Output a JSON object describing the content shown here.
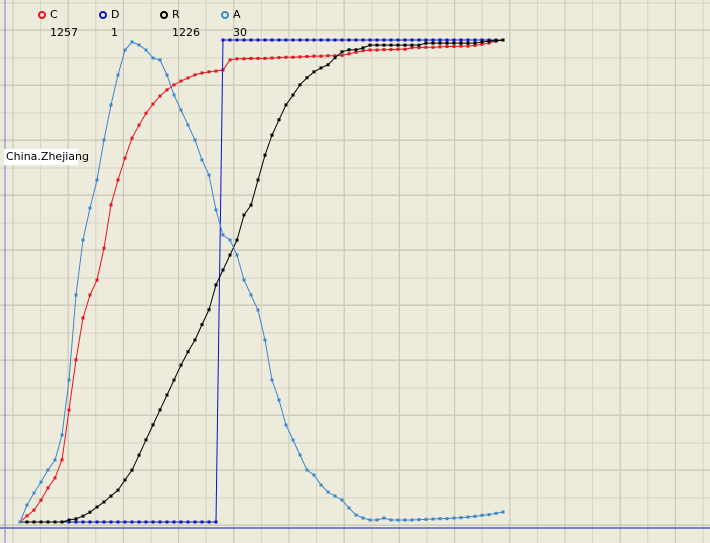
{
  "chart_data": {
    "type": "line",
    "label": "China.Zhejiang",
    "series": [
      {
        "name": "C",
        "color": "#e8141e",
        "latest": "1257",
        "ylim": [
          0,
          1257
        ],
        "values": [
          0,
          16,
          31,
          57,
          89,
          115,
          162,
          292,
          423,
          532,
          592,
          631,
          714,
          827,
          892,
          949,
          1001,
          1035,
          1066,
          1090,
          1111,
          1127,
          1140,
          1150,
          1158,
          1166,
          1171,
          1174,
          1176,
          1179,
          1205,
          1208,
          1208,
          1209,
          1209,
          1209,
          1210,
          1211,
          1212,
          1212,
          1213,
          1214,
          1215,
          1215,
          1216,
          1216,
          1217,
          1221,
          1225,
          1229,
          1231,
          1231,
          1232,
          1232,
          1233,
          1233,
          1237,
          1237,
          1238,
          1238,
          1239,
          1240,
          1240,
          1241,
          1241,
          1243,
          1246,
          1249,
          1254,
          1257
        ]
      },
      {
        "name": "D",
        "color": "#0a14c8",
        "latest": "1",
        "ylim": [
          0,
          1
        ],
        "values": [
          0,
          0,
          0,
          0,
          0,
          0,
          0,
          0,
          0,
          0,
          0,
          0,
          0,
          0,
          0,
          0,
          0,
          0,
          0,
          0,
          0,
          0,
          0,
          0,
          0,
          0,
          0,
          0,
          0,
          1,
          1,
          1,
          1,
          1,
          1,
          1,
          1,
          1,
          1,
          1,
          1,
          1,
          1,
          1,
          1,
          1,
          1,
          1,
          1,
          1,
          1,
          1,
          1,
          1,
          1,
          1,
          1,
          1,
          1,
          1,
          1,
          1,
          1,
          1,
          1,
          1,
          1,
          1,
          1,
          1
        ]
      },
      {
        "name": "R",
        "color": "#000000",
        "latest": "1226",
        "ylim": [
          0,
          1226
        ],
        "values": [
          0,
          0,
          0,
          0,
          0,
          0,
          0,
          5,
          8,
          15,
          25,
          38,
          51,
          66,
          81,
          107,
          132,
          170,
          209,
          247,
          285,
          323,
          361,
          399,
          433,
          463,
          502,
          540,
          603,
          641,
          679,
          717,
          781,
          806,
          870,
          933,
          984,
          1023,
          1061,
          1086,
          1112,
          1130,
          1145,
          1155,
          1163,
          1181,
          1196,
          1201,
          1201,
          1206,
          1213,
          1213,
          1213,
          1213,
          1213,
          1213,
          1213,
          1213,
          1218,
          1218,
          1218,
          1218,
          1218,
          1218,
          1218,
          1218,
          1221,
          1223,
          1224,
          1226
        ]
      },
      {
        "name": "A",
        "color": "#3c88cc",
        "latest": "30",
        "ylim": [
          0,
          1446
        ],
        "values": [
          0,
          51,
          87,
          120,
          156,
          186,
          261,
          426,
          681,
          846,
          942,
          1026,
          1146,
          1251,
          1341,
          1416,
          1440,
          1431,
          1416,
          1392,
          1386,
          1341,
          1281,
          1236,
          1191,
          1146,
          1086,
          1041,
          936,
          861,
          846,
          801,
          726,
          681,
          636,
          546,
          426,
          366,
          291,
          246,
          201,
          156,
          141,
          111,
          90,
          78,
          66,
          42,
          21,
          12,
          6,
          6,
          12,
          6,
          6,
          6,
          6,
          7,
          8,
          9,
          10,
          10,
          12,
          13,
          15,
          17,
          20,
          22,
          26,
          30
        ]
      }
    ]
  }
}
